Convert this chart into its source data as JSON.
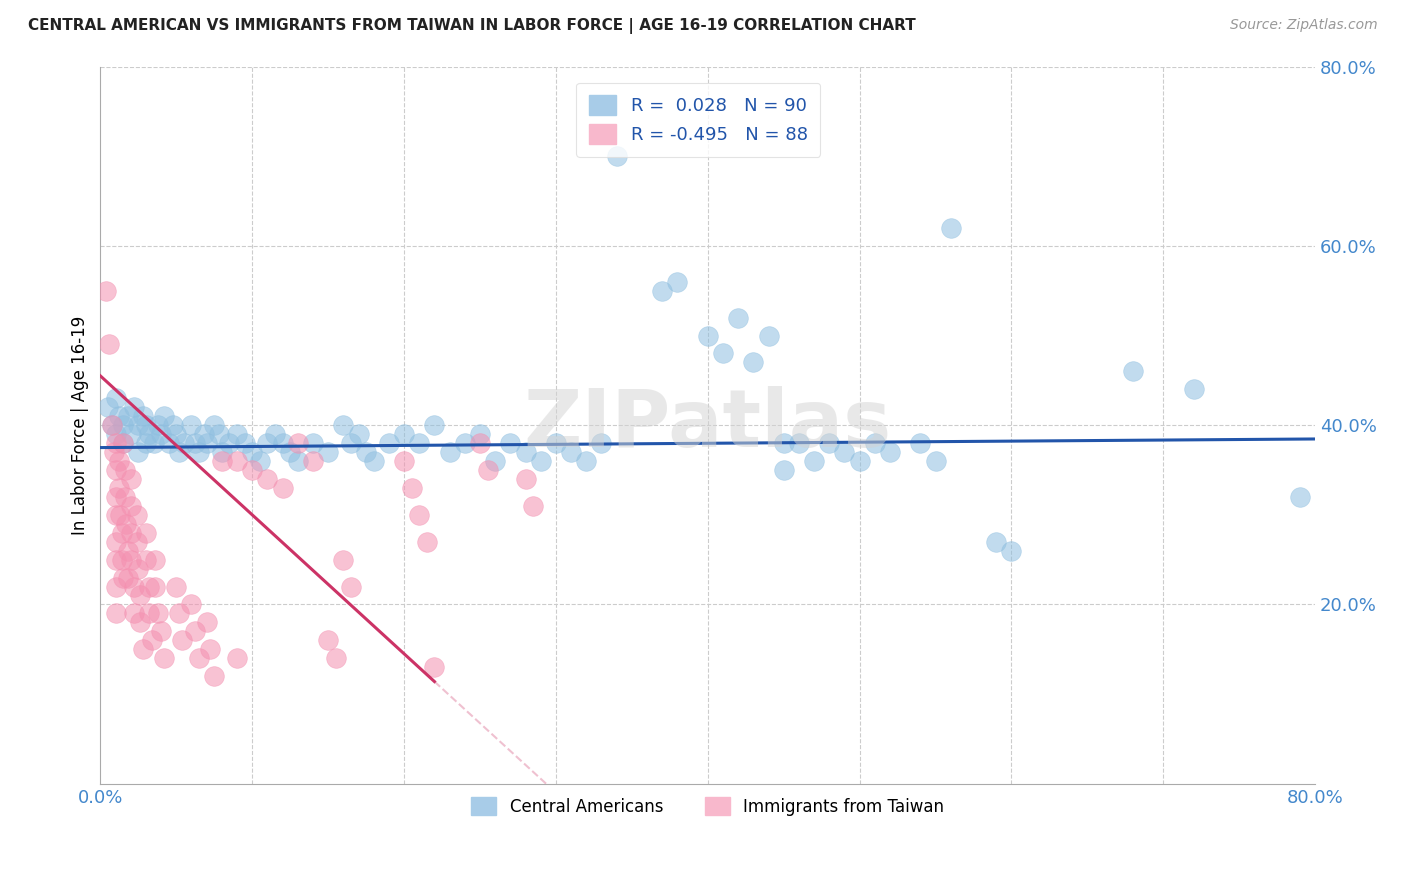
{
  "title": "CENTRAL AMERICAN VS IMMIGRANTS FROM TAIWAN IN LABOR FORCE | AGE 16-19 CORRELATION CHART",
  "source": "Source: ZipAtlas.com",
  "ylabel": "In Labor Force | Age 16-19",
  "xlim": [
    0.0,
    0.8
  ],
  "ylim": [
    0.0,
    0.8
  ],
  "watermark": "ZIPatlas",
  "blue_color": "#8fbfe0",
  "pink_color": "#f490b0",
  "line_blue_color": "#2255aa",
  "line_pink_color": "#cc3366",
  "blue_intercept": 0.375,
  "blue_slope": 0.012,
  "pink_intercept": 0.455,
  "pink_slope": -1.55,
  "pink_line_solid_end": 0.22,
  "pink_line_dashed_end": 0.38,
  "blue_points": [
    [
      0.005,
      0.42
    ],
    [
      0.008,
      0.4
    ],
    [
      0.01,
      0.43
    ],
    [
      0.01,
      0.39
    ],
    [
      0.012,
      0.41
    ],
    [
      0.015,
      0.4
    ],
    [
      0.015,
      0.38
    ],
    [
      0.018,
      0.41
    ],
    [
      0.02,
      0.39
    ],
    [
      0.022,
      0.42
    ],
    [
      0.025,
      0.4
    ],
    [
      0.025,
      0.37
    ],
    [
      0.028,
      0.41
    ],
    [
      0.03,
      0.4
    ],
    [
      0.03,
      0.38
    ],
    [
      0.032,
      0.39
    ],
    [
      0.035,
      0.38
    ],
    [
      0.038,
      0.4
    ],
    [
      0.04,
      0.39
    ],
    [
      0.042,
      0.41
    ],
    [
      0.045,
      0.38
    ],
    [
      0.048,
      0.4
    ],
    [
      0.05,
      0.39
    ],
    [
      0.052,
      0.37
    ],
    [
      0.055,
      0.38
    ],
    [
      0.06,
      0.4
    ],
    [
      0.062,
      0.38
    ],
    [
      0.065,
      0.37
    ],
    [
      0.068,
      0.39
    ],
    [
      0.07,
      0.38
    ],
    [
      0.075,
      0.4
    ],
    [
      0.078,
      0.39
    ],
    [
      0.08,
      0.37
    ],
    [
      0.085,
      0.38
    ],
    [
      0.09,
      0.39
    ],
    [
      0.095,
      0.38
    ],
    [
      0.1,
      0.37
    ],
    [
      0.105,
      0.36
    ],
    [
      0.11,
      0.38
    ],
    [
      0.115,
      0.39
    ],
    [
      0.12,
      0.38
    ],
    [
      0.125,
      0.37
    ],
    [
      0.13,
      0.36
    ],
    [
      0.14,
      0.38
    ],
    [
      0.15,
      0.37
    ],
    [
      0.16,
      0.4
    ],
    [
      0.165,
      0.38
    ],
    [
      0.17,
      0.39
    ],
    [
      0.175,
      0.37
    ],
    [
      0.18,
      0.36
    ],
    [
      0.19,
      0.38
    ],
    [
      0.2,
      0.39
    ],
    [
      0.21,
      0.38
    ],
    [
      0.22,
      0.4
    ],
    [
      0.23,
      0.37
    ],
    [
      0.24,
      0.38
    ],
    [
      0.25,
      0.39
    ],
    [
      0.26,
      0.36
    ],
    [
      0.27,
      0.38
    ],
    [
      0.28,
      0.37
    ],
    [
      0.29,
      0.36
    ],
    [
      0.3,
      0.38
    ],
    [
      0.31,
      0.37
    ],
    [
      0.32,
      0.36
    ],
    [
      0.33,
      0.38
    ],
    [
      0.34,
      0.7
    ],
    [
      0.37,
      0.55
    ],
    [
      0.38,
      0.56
    ],
    [
      0.4,
      0.5
    ],
    [
      0.41,
      0.48
    ],
    [
      0.42,
      0.52
    ],
    [
      0.43,
      0.47
    ],
    [
      0.44,
      0.5
    ],
    [
      0.45,
      0.38
    ],
    [
      0.45,
      0.35
    ],
    [
      0.46,
      0.38
    ],
    [
      0.47,
      0.36
    ],
    [
      0.48,
      0.38
    ],
    [
      0.49,
      0.37
    ],
    [
      0.5,
      0.36
    ],
    [
      0.51,
      0.38
    ],
    [
      0.52,
      0.37
    ],
    [
      0.54,
      0.38
    ],
    [
      0.55,
      0.36
    ],
    [
      0.56,
      0.62
    ],
    [
      0.59,
      0.27
    ],
    [
      0.6,
      0.26
    ],
    [
      0.68,
      0.46
    ],
    [
      0.72,
      0.44
    ],
    [
      0.79,
      0.32
    ]
  ],
  "pink_points": [
    [
      0.004,
      0.55
    ],
    [
      0.006,
      0.49
    ],
    [
      0.008,
      0.4
    ],
    [
      0.009,
      0.37
    ],
    [
      0.01,
      0.38
    ],
    [
      0.01,
      0.35
    ],
    [
      0.01,
      0.32
    ],
    [
      0.01,
      0.3
    ],
    [
      0.01,
      0.27
    ],
    [
      0.01,
      0.25
    ],
    [
      0.01,
      0.22
    ],
    [
      0.01,
      0.19
    ],
    [
      0.012,
      0.36
    ],
    [
      0.012,
      0.33
    ],
    [
      0.013,
      0.3
    ],
    [
      0.014,
      0.28
    ],
    [
      0.014,
      0.25
    ],
    [
      0.015,
      0.23
    ],
    [
      0.015,
      0.38
    ],
    [
      0.016,
      0.35
    ],
    [
      0.016,
      0.32
    ],
    [
      0.017,
      0.29
    ],
    [
      0.018,
      0.26
    ],
    [
      0.018,
      0.23
    ],
    [
      0.02,
      0.34
    ],
    [
      0.02,
      0.31
    ],
    [
      0.02,
      0.28
    ],
    [
      0.02,
      0.25
    ],
    [
      0.022,
      0.22
    ],
    [
      0.022,
      0.19
    ],
    [
      0.024,
      0.3
    ],
    [
      0.024,
      0.27
    ],
    [
      0.025,
      0.24
    ],
    [
      0.026,
      0.21
    ],
    [
      0.026,
      0.18
    ],
    [
      0.028,
      0.15
    ],
    [
      0.03,
      0.28
    ],
    [
      0.03,
      0.25
    ],
    [
      0.032,
      0.22
    ],
    [
      0.032,
      0.19
    ],
    [
      0.034,
      0.16
    ],
    [
      0.036,
      0.25
    ],
    [
      0.036,
      0.22
    ],
    [
      0.038,
      0.19
    ],
    [
      0.04,
      0.17
    ],
    [
      0.042,
      0.14
    ],
    [
      0.05,
      0.22
    ],
    [
      0.052,
      0.19
    ],
    [
      0.054,
      0.16
    ],
    [
      0.06,
      0.2
    ],
    [
      0.062,
      0.17
    ],
    [
      0.065,
      0.14
    ],
    [
      0.07,
      0.18
    ],
    [
      0.072,
      0.15
    ],
    [
      0.075,
      0.12
    ],
    [
      0.08,
      0.36
    ],
    [
      0.09,
      0.36
    ],
    [
      0.1,
      0.35
    ],
    [
      0.11,
      0.34
    ],
    [
      0.12,
      0.33
    ],
    [
      0.13,
      0.38
    ],
    [
      0.14,
      0.36
    ],
    [
      0.15,
      0.16
    ],
    [
      0.155,
      0.14
    ],
    [
      0.16,
      0.25
    ],
    [
      0.165,
      0.22
    ],
    [
      0.2,
      0.36
    ],
    [
      0.205,
      0.33
    ],
    [
      0.21,
      0.3
    ],
    [
      0.215,
      0.27
    ],
    [
      0.22,
      0.13
    ],
    [
      0.25,
      0.38
    ],
    [
      0.255,
      0.35
    ],
    [
      0.28,
      0.34
    ],
    [
      0.285,
      0.31
    ],
    [
      0.09,
      0.14
    ]
  ]
}
